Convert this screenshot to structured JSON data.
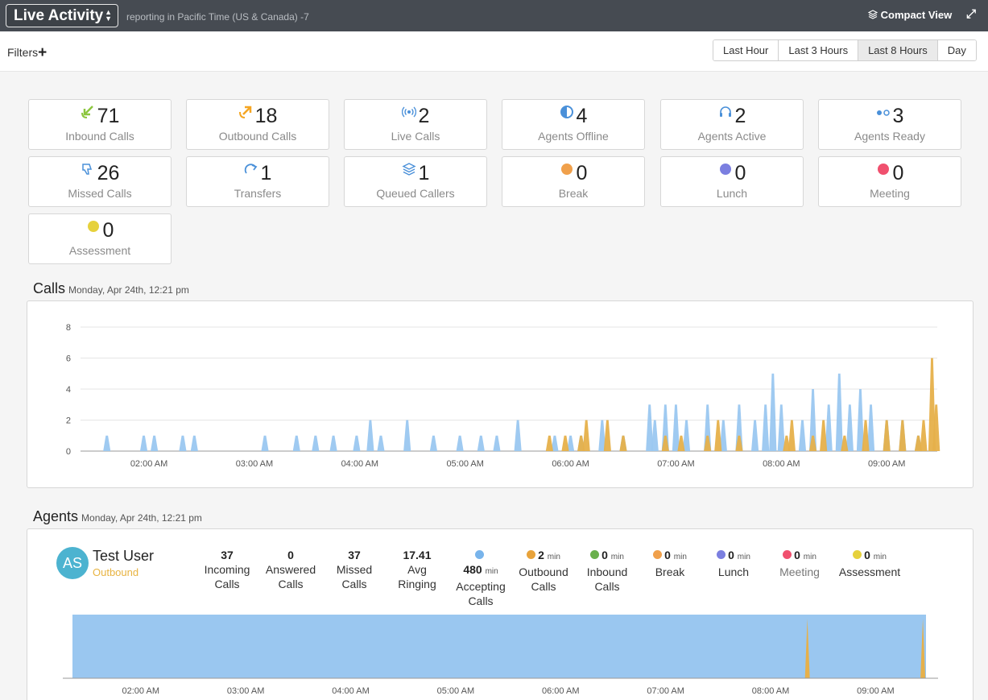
{
  "topbar": {
    "view_label": "Live Activity",
    "timezone_text": "reporting in Pacific Time (US & Canada) -7",
    "compact_view_label": "Compact View"
  },
  "filterbar": {
    "filters_label": "Filters",
    "ranges": [
      "Last Hour",
      "Last 3 Hours",
      "Last 8 Hours",
      "Day"
    ],
    "active_range": "Last 8 Hours"
  },
  "stats": [
    {
      "value": "71",
      "label": "Inbound Calls",
      "icon": "inbound-call-icon",
      "color": "#8cc63f"
    },
    {
      "value": "18",
      "label": "Outbound Calls",
      "icon": "outbound-call-icon",
      "color": "#f5a623"
    },
    {
      "value": "2",
      "label": "Live Calls",
      "icon": "live-call-icon",
      "color": "#4a90d9"
    },
    {
      "value": "4",
      "label": "Agents Offline",
      "icon": "half-circle-icon",
      "color": "#4a90d9"
    },
    {
      "value": "2",
      "label": "Agents Active",
      "icon": "headset-icon",
      "color": "#4a90d9"
    },
    {
      "value": "3",
      "label": "Agents Ready",
      "icon": "ready-dots-icon",
      "color": "#4a90d9"
    },
    {
      "value": "26",
      "label": "Missed Calls",
      "icon": "thumbs-down-icon",
      "color": "#4a90d9"
    },
    {
      "value": "1",
      "label": "Transfers",
      "icon": "transfer-icon",
      "color": "#4a90d9"
    },
    {
      "value": "1",
      "label": "Queued Callers",
      "icon": "layers-icon",
      "color": "#4a90d9"
    },
    {
      "value": "0",
      "label": "Break",
      "icon": "dot-icon",
      "color": "#f0a04b"
    },
    {
      "value": "0",
      "label": "Lunch",
      "icon": "dot-icon",
      "color": "#7b7fe0"
    },
    {
      "value": "0",
      "label": "Meeting",
      "icon": "dot-icon",
      "color": "#f0506e"
    },
    {
      "value": "0",
      "label": "Assessment",
      "icon": "dot-icon",
      "color": "#e6d13c"
    }
  ],
  "calls_section": {
    "title": "Calls",
    "subtitle": "Monday, Apr 24th, 12:21 pm"
  },
  "agents_section": {
    "title": "Agents",
    "subtitle": "Monday, Apr 24th, 12:21 pm"
  },
  "colors": {
    "blue": "#9ac7f0",
    "orange": "#e6b04a"
  },
  "chart_data": [
    {
      "type": "area",
      "title": "",
      "ylim": [
        0,
        8
      ],
      "yticks": [
        0,
        2,
        4,
        6,
        8
      ],
      "grid": true,
      "x_ticks": [
        "02:00 AM",
        "03:00 AM",
        "04:00 AM",
        "05:00 AM",
        "06:00 AM",
        "07:00 AM",
        "08:00 AM",
        "09:00 AM"
      ],
      "x_range_hours": [
        1.35,
        9.48
      ],
      "series": [
        {
          "color": "#9ac7f0",
          "points": [
            [
              1.6,
              1
            ],
            [
              1.95,
              1
            ],
            [
              2.05,
              1
            ],
            [
              2.32,
              1
            ],
            [
              2.43,
              1
            ],
            [
              3.1,
              1
            ],
            [
              3.4,
              1
            ],
            [
              3.58,
              1
            ],
            [
              3.75,
              1
            ],
            [
              3.97,
              1
            ],
            [
              4.1,
              2
            ],
            [
              4.2,
              1
            ],
            [
              4.45,
              2
            ],
            [
              4.7,
              1
            ],
            [
              4.95,
              1
            ],
            [
              5.15,
              1
            ],
            [
              5.3,
              1
            ],
            [
              5.5,
              2
            ],
            [
              5.85,
              1
            ],
            [
              6.0,
              1
            ],
            [
              6.1,
              1
            ],
            [
              6.3,
              2
            ],
            [
              6.5,
              1
            ],
            [
              6.75,
              3
            ],
            [
              6.8,
              2
            ],
            [
              6.9,
              3
            ],
            [
              7.0,
              3
            ],
            [
              7.1,
              2
            ],
            [
              7.3,
              3
            ],
            [
              7.45,
              2
            ],
            [
              7.6,
              3
            ],
            [
              7.75,
              2
            ],
            [
              7.85,
              3
            ],
            [
              7.92,
              5
            ],
            [
              8.0,
              3
            ],
            [
              8.2,
              2
            ],
            [
              8.3,
              4
            ],
            [
              8.45,
              3
            ],
            [
              8.55,
              5
            ],
            [
              8.65,
              3
            ],
            [
              8.75,
              4
            ],
            [
              8.85,
              3
            ],
            [
              9.0,
              2
            ],
            [
              9.15,
              2
            ],
            [
              9.3,
              1
            ]
          ]
        },
        {
          "color": "#e6b04a",
          "points": [
            [
              5.8,
              1
            ],
            [
              5.95,
              1
            ],
            [
              6.1,
              1
            ],
            [
              6.15,
              2
            ],
            [
              6.35,
              2
            ],
            [
              6.5,
              1
            ],
            [
              6.9,
              1
            ],
            [
              7.05,
              1
            ],
            [
              7.3,
              1
            ],
            [
              7.4,
              2
            ],
            [
              7.6,
              1
            ],
            [
              8.05,
              1
            ],
            [
              8.1,
              2
            ],
            [
              8.3,
              1
            ],
            [
              8.4,
              2
            ],
            [
              8.6,
              1
            ],
            [
              8.8,
              2
            ],
            [
              9.0,
              2
            ],
            [
              9.15,
              2
            ],
            [
              9.3,
              1
            ],
            [
              9.35,
              2
            ],
            [
              9.43,
              6
            ],
            [
              9.47,
              3
            ]
          ]
        }
      ]
    },
    {
      "type": "area",
      "title": "",
      "x_ticks": [
        "02:00 AM",
        "03:00 AM",
        "04:00 AM",
        "05:00 AM",
        "06:00 AM",
        "07:00 AM",
        "08:00 AM",
        "09:00 AM"
      ],
      "series": [
        {
          "color": "#9ac7f0",
          "from_hours": 1.35,
          "to_hours": 9.48
        },
        {
          "color": "#e6b04a",
          "spikes_hours": [
            8.35,
            9.45
          ]
        }
      ]
    }
  ],
  "agent": {
    "initials": "AS",
    "name": "Test User",
    "status": "Outbound",
    "stats": [
      {
        "value": "37",
        "label1": "Incoming",
        "label2": "Calls"
      },
      {
        "value": "0",
        "label1": "Answered",
        "label2": "Calls"
      },
      {
        "value": "37",
        "label1": "Missed",
        "label2": "Calls"
      },
      {
        "value": "17.41",
        "label1": "Avg",
        "label2": "Ringing"
      },
      {
        "value": "480",
        "unit": "min",
        "label1": "Accepting",
        "label2": "Calls",
        "color": "#78b4eb"
      },
      {
        "value": "2",
        "unit": "min",
        "label1": "Outbound",
        "label2": "Calls",
        "color": "#e8a33b"
      },
      {
        "value": "0",
        "unit": "min",
        "label1": "Inbound",
        "label2": "Calls",
        "color": "#6ab04c"
      },
      {
        "value": "0",
        "unit": "min",
        "label1": "Break",
        "color": "#f0a04b"
      },
      {
        "value": "0",
        "unit": "min",
        "label1": "Lunch",
        "color": "#7b7fe0"
      },
      {
        "value": "0",
        "unit": "min",
        "label1": "Meeting",
        "color": "#f0506e"
      },
      {
        "value": "0",
        "unit": "min",
        "label1": "Assessment",
        "color": "#e6d13c"
      }
    ]
  }
}
